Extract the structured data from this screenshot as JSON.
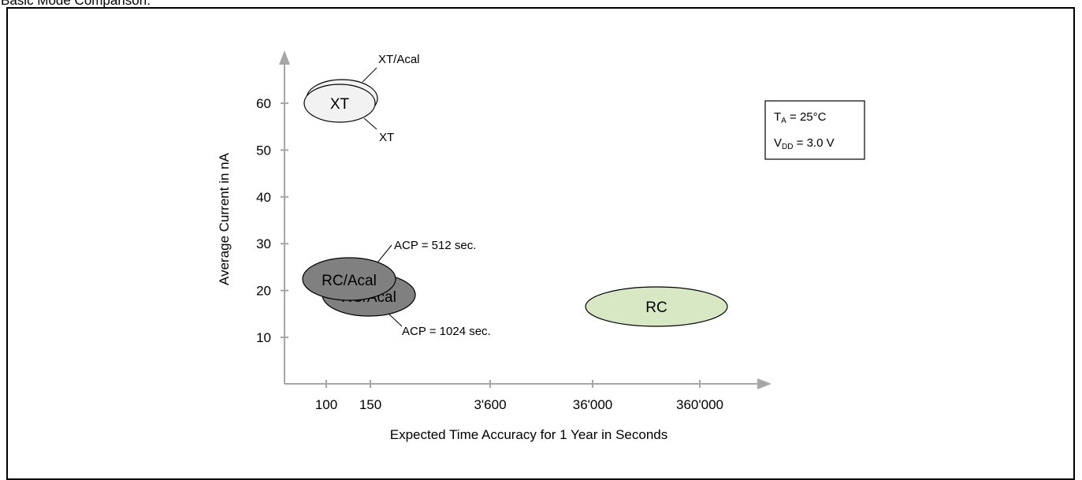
{
  "caption": "Basic Mode Comparison:",
  "chart_data": {
    "type": "bubble",
    "xlabel": "Expected Time Accuracy for 1 Year in Seconds",
    "ylabel": "Average Current in nA",
    "x_ticks": [
      "100",
      "150",
      "3'600",
      "36'000",
      "360'000"
    ],
    "y_ticks": [
      10,
      20,
      30,
      40,
      50,
      60
    ],
    "ylim": [
      0,
      68
    ],
    "bubbles": [
      {
        "label": "",
        "x": 150,
        "y": 62,
        "color": "#f2f2f2"
      },
      {
        "label": "XT",
        "x": 150,
        "y": 60,
        "color": "#f2f2f2"
      },
      {
        "label": "RC/Acal",
        "x": 180,
        "y": 19,
        "color": "#808080"
      },
      {
        "label": "RC/Acal",
        "x": 140,
        "y": 22,
        "color": "#808080"
      },
      {
        "label": "RC",
        "x": 200000,
        "y": 17,
        "color": "#d9e8c4"
      }
    ],
    "annotations": [
      {
        "text": "XT/Acal"
      },
      {
        "text": "XT"
      },
      {
        "text": "ACP = 512 sec."
      },
      {
        "text": "ACP = 1024 sec."
      }
    ],
    "conditions": {
      "ta_main": "T",
      "ta_sub": "A",
      "ta_value": " = 25°C",
      "vdd_main": "V",
      "vdd_sub": "DD",
      "vdd_value": " = 3.0 V"
    },
    "grid": false,
    "legend": "none"
  }
}
